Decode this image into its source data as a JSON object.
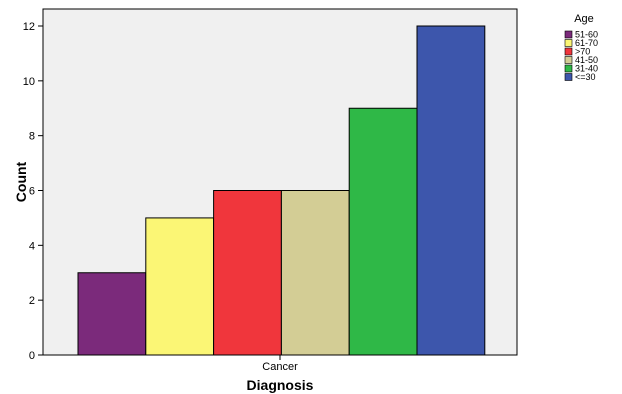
{
  "chart_data": {
    "type": "bar",
    "xlabel": "Diagnosis",
    "ylabel": "Count",
    "categories": [
      "Cancer"
    ],
    "ylim": [
      0,
      12
    ],
    "yticks": [
      0,
      2,
      4,
      6,
      8,
      10,
      12
    ],
    "grid": false,
    "legend": {
      "title": "Age",
      "placement": "top-right"
    },
    "series": [
      {
        "name": "51-60",
        "values": [
          3
        ],
        "color": "#7b2a7b"
      },
      {
        "name": "61-70",
        "values": [
          5
        ],
        "color": "#fbf675"
      },
      {
        "name": ">70",
        "values": [
          6
        ],
        "color": "#f0363c"
      },
      {
        "name": "41-50",
        "values": [
          6
        ],
        "color": "#d3cd95"
      },
      {
        "name": "31-40",
        "values": [
          9
        ],
        "color": "#2fb847"
      },
      {
        "name": "<=30",
        "values": [
          12
        ],
        "color": "#3d56ac"
      }
    ],
    "plot_background": "#f0f0f0"
  }
}
